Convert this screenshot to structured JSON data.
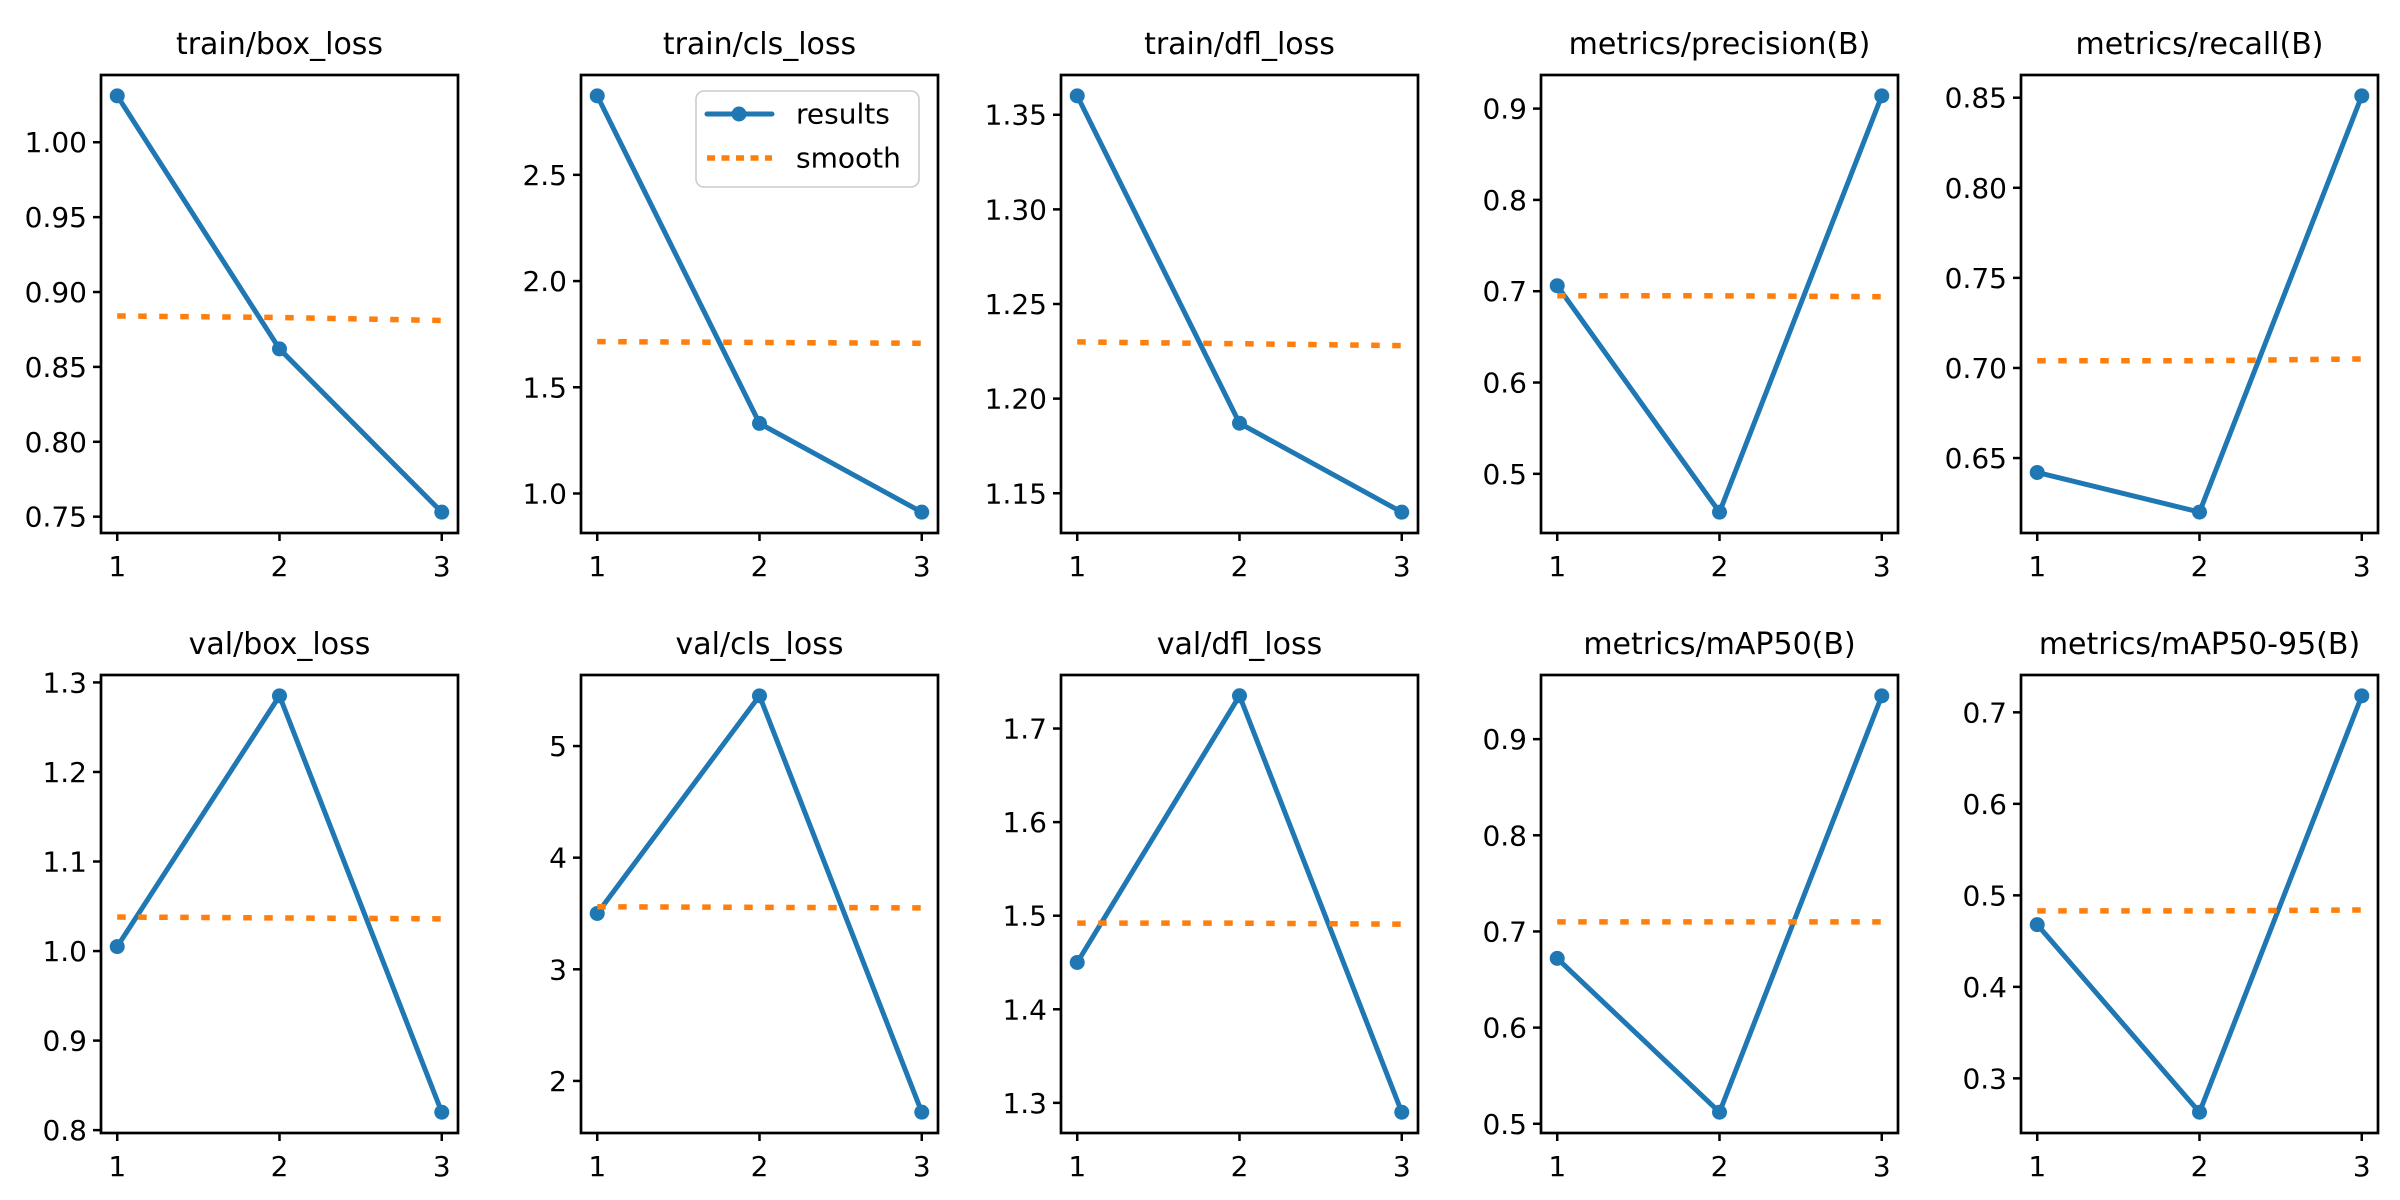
{
  "figure": {
    "background": "#ffffff",
    "results_color": "#1f77b4",
    "smooth_color": "#ff7f0e",
    "text_color": "#000000",
    "axes_color": "#000000",
    "legend": {
      "results_label": "results",
      "smooth_label": "smooth",
      "position": "upper-right-of-train-cls_loss",
      "border_color": "#cccccc"
    },
    "grid_layout": {
      "rows": 2,
      "cols": 5
    }
  },
  "chart_data": [
    {
      "type": "line",
      "title": "train/box_loss",
      "x": [
        1,
        2,
        3
      ],
      "xticks": [
        "1",
        "2",
        "3"
      ],
      "xlim": [
        0.9,
        3.1
      ],
      "ylim": [
        0.7391,
        1.0449
      ],
      "legend": false,
      "series": [
        {
          "name": "results",
          "values": [
            1.031,
            0.862,
            0.753
          ]
        },
        {
          "name": "smooth",
          "values": [
            0.884,
            0.883,
            0.881
          ]
        }
      ],
      "yticks": [
        {
          "v": 0.75,
          "label": "0.75"
        },
        {
          "v": 0.8,
          "label": "0.80"
        },
        {
          "v": 0.85,
          "label": "0.85"
        },
        {
          "v": 0.9,
          "label": "0.90"
        },
        {
          "v": 0.95,
          "label": "0.95"
        },
        {
          "v": 1.0,
          "label": "1.00"
        }
      ]
    },
    {
      "type": "line",
      "title": "train/cls_loss",
      "x": [
        1,
        2,
        3
      ],
      "xticks": [
        "1",
        "2",
        "3"
      ],
      "xlim": [
        0.9,
        3.1
      ],
      "ylim": [
        0.814,
        2.97
      ],
      "legend": true,
      "series": [
        {
          "name": "results",
          "values": [
            2.872,
            1.33,
            0.912
          ]
        },
        {
          "name": "smooth",
          "values": [
            1.715,
            1.711,
            1.707
          ]
        }
      ],
      "yticks": [
        {
          "v": 1.0,
          "label": "1.0"
        },
        {
          "v": 1.5,
          "label": "1.5"
        },
        {
          "v": 2.0,
          "label": "2.0"
        },
        {
          "v": 2.5,
          "label": "2.5"
        }
      ]
    },
    {
      "type": "line",
      "title": "train/dfl_loss",
      "x": [
        1,
        2,
        3
      ],
      "xticks": [
        "1",
        "2",
        "3"
      ],
      "xlim": [
        0.9,
        3.1
      ],
      "ylim": [
        1.129,
        1.371
      ],
      "legend": false,
      "series": [
        {
          "name": "results",
          "values": [
            1.36,
            1.187,
            1.14
          ]
        },
        {
          "name": "smooth",
          "values": [
            1.23,
            1.229,
            1.228
          ]
        }
      ],
      "yticks": [
        {
          "v": 1.15,
          "label": "1.15"
        },
        {
          "v": 1.2,
          "label": "1.20"
        },
        {
          "v": 1.25,
          "label": "1.25"
        },
        {
          "v": 1.3,
          "label": "1.30"
        },
        {
          "v": 1.35,
          "label": "1.35"
        }
      ]
    },
    {
      "type": "line",
      "title": "metrics/precision(B)",
      "x": [
        1,
        2,
        3
      ],
      "xticks": [
        "1",
        "2",
        "3"
      ],
      "xlim": [
        0.9,
        3.1
      ],
      "ylim": [
        0.4352,
        0.9368
      ],
      "legend": false,
      "series": [
        {
          "name": "results",
          "values": [
            0.706,
            0.458,
            0.914
          ]
        },
        {
          "name": "smooth",
          "values": [
            0.695,
            0.695,
            0.694
          ]
        }
      ],
      "yticks": [
        {
          "v": 0.5,
          "label": "0.5"
        },
        {
          "v": 0.6,
          "label": "0.6"
        },
        {
          "v": 0.7,
          "label": "0.7"
        },
        {
          "v": 0.8,
          "label": "0.8"
        },
        {
          "v": 0.9,
          "label": "0.9"
        }
      ]
    },
    {
      "type": "line",
      "title": "metrics/recall(B)",
      "x": [
        1,
        2,
        3
      ],
      "xticks": [
        "1",
        "2",
        "3"
      ],
      "xlim": [
        0.9,
        3.1
      ],
      "ylim": [
        0.6084,
        0.8626
      ],
      "legend": false,
      "series": [
        {
          "name": "results",
          "values": [
            0.642,
            0.62,
            0.851
          ]
        },
        {
          "name": "smooth",
          "values": [
            0.704,
            0.704,
            0.705
          ]
        }
      ],
      "yticks": [
        {
          "v": 0.65,
          "label": "0.65"
        },
        {
          "v": 0.7,
          "label": "0.70"
        },
        {
          "v": 0.75,
          "label": "0.75"
        },
        {
          "v": 0.8,
          "label": "0.80"
        },
        {
          "v": 0.85,
          "label": "0.85"
        }
      ]
    },
    {
      "type": "line",
      "title": "val/box_loss",
      "x": [
        1,
        2,
        3
      ],
      "xticks": [
        "1",
        "2",
        "3"
      ],
      "xlim": [
        0.9,
        3.1
      ],
      "ylim": [
        0.7968,
        1.3083
      ],
      "legend": false,
      "series": [
        {
          "name": "results",
          "values": [
            1.005,
            1.285,
            0.82
          ]
        },
        {
          "name": "smooth",
          "values": [
            1.038,
            1.037,
            1.036
          ]
        }
      ],
      "yticks": [
        {
          "v": 0.8,
          "label": "0.8"
        },
        {
          "v": 0.9,
          "label": "0.9"
        },
        {
          "v": 1.0,
          "label": "1.0"
        },
        {
          "v": 1.1,
          "label": "1.1"
        },
        {
          "v": 1.2,
          "label": "1.2"
        },
        {
          "v": 1.3,
          "label": "1.3"
        }
      ]
    },
    {
      "type": "line",
      "title": "val/cls_loss",
      "x": [
        1,
        2,
        3
      ],
      "xticks": [
        "1",
        "2",
        "3"
      ],
      "xlim": [
        0.9,
        3.1
      ],
      "ylim": [
        1.5335,
        5.6365
      ],
      "legend": false,
      "series": [
        {
          "name": "results",
          "values": [
            3.5,
            5.45,
            1.72
          ]
        },
        {
          "name": "smooth",
          "values": [
            3.56,
            3.555,
            3.55
          ]
        }
      ],
      "yticks": [
        {
          "v": 2,
          "label": "2"
        },
        {
          "v": 3,
          "label": "3"
        },
        {
          "v": 4,
          "label": "4"
        },
        {
          "v": 5,
          "label": "5"
        }
      ]
    },
    {
      "type": "line",
      "title": "val/dfl_loss",
      "x": [
        1,
        2,
        3
      ],
      "xticks": [
        "1",
        "2",
        "3"
      ],
      "xlim": [
        0.9,
        3.1
      ],
      "ylim": [
        1.2678,
        1.7572
      ],
      "legend": false,
      "series": [
        {
          "name": "results",
          "values": [
            1.45,
            1.735,
            1.29
          ]
        },
        {
          "name": "smooth",
          "values": [
            1.492,
            1.492,
            1.491
          ]
        }
      ],
      "yticks": [
        {
          "v": 1.3,
          "label": "1.3"
        },
        {
          "v": 1.4,
          "label": "1.4"
        },
        {
          "v": 1.5,
          "label": "1.5"
        },
        {
          "v": 1.6,
          "label": "1.6"
        },
        {
          "v": 1.7,
          "label": "1.7"
        }
      ]
    },
    {
      "type": "line",
      "title": "metrics/mAP50(B)",
      "x": [
        1,
        2,
        3
      ],
      "xticks": [
        "1",
        "2",
        "3"
      ],
      "xlim": [
        0.9,
        3.1
      ],
      "ylim": [
        0.4904,
        0.9667
      ],
      "legend": false,
      "series": [
        {
          "name": "results",
          "values": [
            0.672,
            0.512,
            0.945
          ]
        },
        {
          "name": "smooth",
          "values": [
            0.71,
            0.71,
            0.71
          ]
        }
      ],
      "yticks": [
        {
          "v": 0.5,
          "label": "0.5"
        },
        {
          "v": 0.6,
          "label": "0.6"
        },
        {
          "v": 0.7,
          "label": "0.7"
        },
        {
          "v": 0.8,
          "label": "0.8"
        },
        {
          "v": 0.9,
          "label": "0.9"
        }
      ]
    },
    {
      "type": "line",
      "title": "metrics/mAP50-95(B)",
      "x": [
        1,
        2,
        3
      ],
      "xticks": [
        "1",
        "2",
        "3"
      ],
      "xlim": [
        0.9,
        3.1
      ],
      "ylim": [
        0.2403,
        0.7408
      ],
      "legend": false,
      "series": [
        {
          "name": "results",
          "values": [
            0.468,
            0.263,
            0.718
          ]
        },
        {
          "name": "smooth",
          "values": [
            0.483,
            0.483,
            0.484
          ]
        }
      ],
      "yticks": [
        {
          "v": 0.3,
          "label": "0.3"
        },
        {
          "v": 0.4,
          "label": "0.4"
        },
        {
          "v": 0.5,
          "label": "0.5"
        },
        {
          "v": 0.6,
          "label": "0.6"
        },
        {
          "v": 0.7,
          "label": "0.7"
        }
      ]
    }
  ]
}
